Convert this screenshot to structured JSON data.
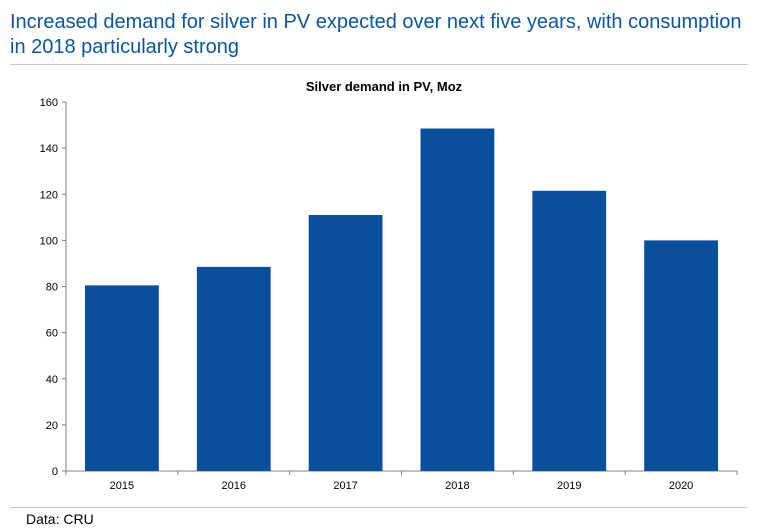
{
  "headline": "Increased demand for silver in PV expected over next five years, with consumption in 2018 particularly strong",
  "source": "Data: CRU",
  "colors": {
    "headline": "#0a56a0",
    "bar": "#0a4f9c",
    "axis": "#808080"
  },
  "chart_data": {
    "type": "bar",
    "title": "Silver demand in PV, Moz",
    "xlabel": "",
    "ylabel": "",
    "categories": [
      "2015",
      "2016",
      "2017",
      "2018",
      "2019",
      "2020"
    ],
    "values": [
      80.5,
      88.5,
      111,
      148.5,
      121.5,
      100
    ],
    "ylim": [
      0,
      160
    ],
    "yticks": [
      0,
      20,
      40,
      60,
      80,
      100,
      120,
      140,
      160
    ],
    "grid": false,
    "legend": "none"
  }
}
